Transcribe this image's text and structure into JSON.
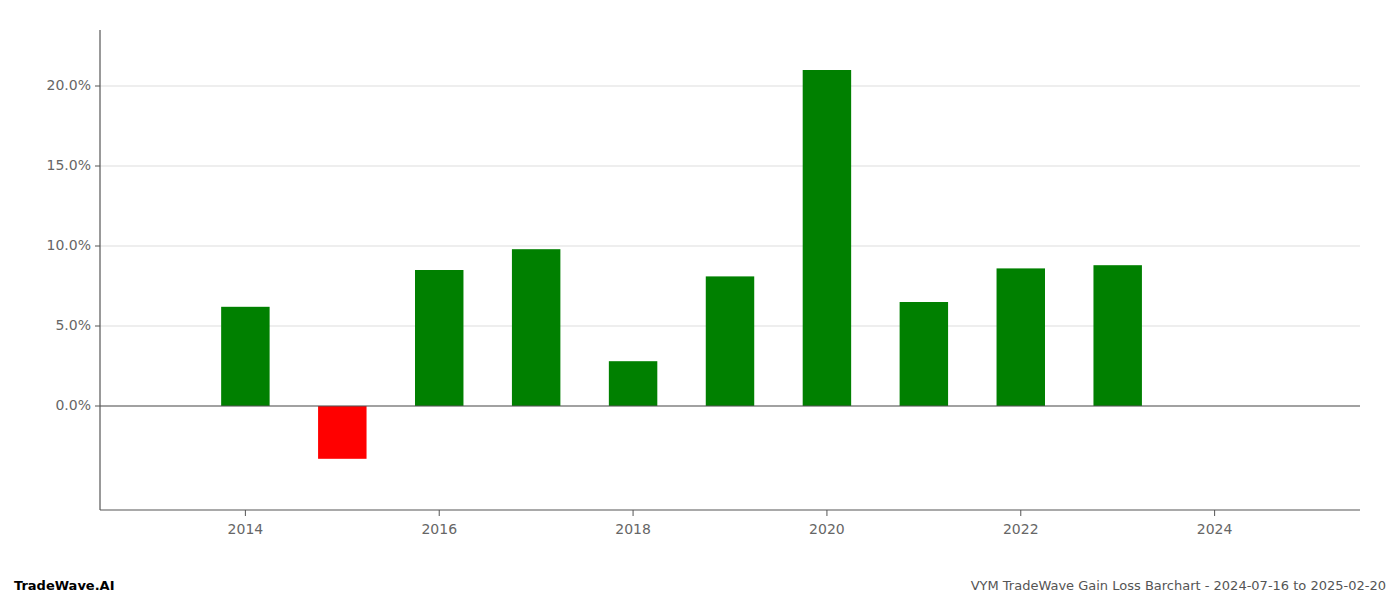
{
  "chart_data": {
    "type": "bar",
    "x": [
      2014,
      2015,
      2016,
      2017,
      2018,
      2019,
      2020,
      2021,
      2022,
      2023
    ],
    "values": [
      0.062,
      -0.033,
      0.085,
      0.098,
      0.028,
      0.081,
      0.21,
      0.065,
      0.086,
      0.088
    ],
    "colors": [
      "#008000",
      "#ff0000",
      "#008000",
      "#008000",
      "#008000",
      "#008000",
      "#008000",
      "#008000",
      "#008000",
      "#008000"
    ],
    "xlim": [
      2012.5,
      2025.5
    ],
    "xticks": [
      2014,
      2016,
      2018,
      2020,
      2022,
      2024
    ],
    "ylim": [
      -0.065,
      0.235
    ],
    "yticks": [
      {
        "value": 0.0,
        "label": "0.0%"
      },
      {
        "value": 0.05,
        "label": "5.0%"
      },
      {
        "value": 0.1,
        "label": "10.0%"
      },
      {
        "value": 0.15,
        "label": "15.0%"
      },
      {
        "value": 0.2,
        "label": "20.0%"
      }
    ],
    "grid": true,
    "annotations": [
      "TradeWave.AI",
      "VYM TradeWave Gain Loss Barchart - 2024-07-16 to 2025-02-20"
    ]
  }
}
